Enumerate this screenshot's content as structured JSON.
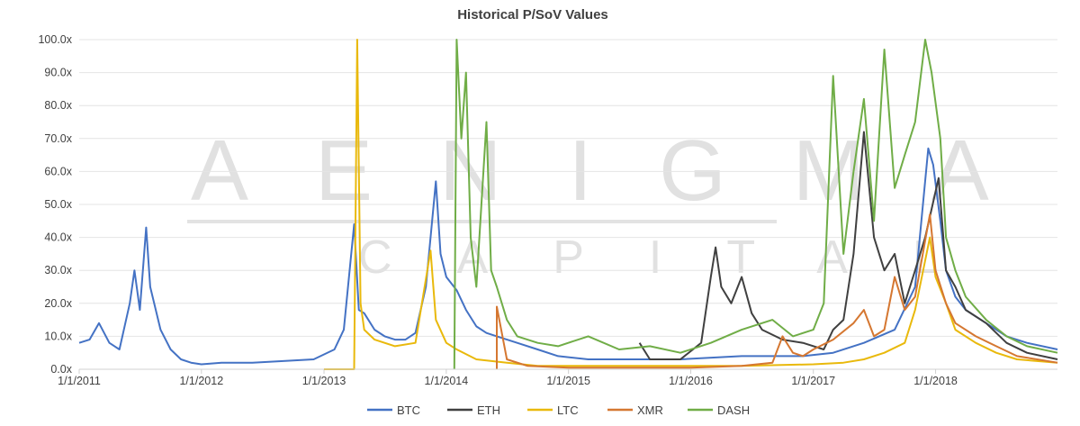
{
  "chart_data": {
    "type": "line",
    "title": "Historical P/SoV Values",
    "xlabel": "",
    "ylabel": "",
    "x_ticks": [
      "1/1/2011",
      "1/1/2012",
      "1/1/2013",
      "1/1/2014",
      "1/1/2015",
      "1/1/2016",
      "1/1/2017",
      "1/1/2018"
    ],
    "x_range": [
      "1/1/2011",
      "12/31/2018"
    ],
    "ylim": [
      0,
      100
    ],
    "y_ticks": [
      "0.0x",
      "10.0x",
      "20.0x",
      "30.0x",
      "40.0x",
      "50.0x",
      "60.0x",
      "70.0x",
      "80.0x",
      "90.0x",
      "100.0x"
    ],
    "grid": true,
    "legend_position": "bottom",
    "watermark": {
      "line1": "AENIGMA",
      "line2": "CAPITAL"
    },
    "series": [
      {
        "name": "BTC",
        "color": "#4472c4",
        "points": [
          [
            "1/1/2011",
            8
          ],
          [
            "2/1/2011",
            9
          ],
          [
            "3/1/2011",
            14
          ],
          [
            "4/1/2011",
            8
          ],
          [
            "5/1/2011",
            6
          ],
          [
            "6/1/2011",
            20
          ],
          [
            "6/15/2011",
            30
          ],
          [
            "7/1/2011",
            18
          ],
          [
            "7/20/2011",
            43
          ],
          [
            "8/1/2011",
            25
          ],
          [
            "9/1/2011",
            12
          ],
          [
            "10/1/2011",
            6
          ],
          [
            "11/1/2011",
            3
          ],
          [
            "12/1/2011",
            2
          ],
          [
            "1/1/2012",
            1.5
          ],
          [
            "3/1/2012",
            2
          ],
          [
            "6/1/2012",
            2
          ],
          [
            "9/1/2012",
            2.5
          ],
          [
            "12/1/2012",
            3
          ],
          [
            "2/1/2013",
            6
          ],
          [
            "3/1/2013",
            12
          ],
          [
            "4/1/2013",
            44
          ],
          [
            "4/15/2013",
            18
          ],
          [
            "5/1/2013",
            17
          ],
          [
            "6/1/2013",
            12
          ],
          [
            "7/1/2013",
            10
          ],
          [
            "8/1/2013",
            9
          ],
          [
            "9/1/2013",
            9
          ],
          [
            "10/1/2013",
            11
          ],
          [
            "11/1/2013",
            25
          ],
          [
            "12/1/2013",
            57
          ],
          [
            "12/15/2013",
            35
          ],
          [
            "1/1/2014",
            28
          ],
          [
            "2/1/2014",
            24
          ],
          [
            "3/1/2014",
            18
          ],
          [
            "4/1/2014",
            13
          ],
          [
            "5/1/2014",
            11
          ],
          [
            "6/1/2014",
            10
          ],
          [
            "8/1/2014",
            8
          ],
          [
            "10/1/2014",
            6
          ],
          [
            "12/1/2014",
            4
          ],
          [
            "3/1/2015",
            3
          ],
          [
            "6/1/2015",
            3
          ],
          [
            "9/1/2015",
            3
          ],
          [
            "12/1/2015",
            3
          ],
          [
            "6/1/2016",
            4
          ],
          [
            "12/1/2016",
            4
          ],
          [
            "3/1/2017",
            5
          ],
          [
            "6/1/2017",
            8
          ],
          [
            "9/1/2017",
            12
          ],
          [
            "11/1/2017",
            25
          ],
          [
            "12/10/2017",
            67
          ],
          [
            "12/25/2017",
            62
          ],
          [
            "1/15/2018",
            45
          ],
          [
            "2/1/2018",
            30
          ],
          [
            "3/1/2018",
            22
          ],
          [
            "4/1/2018",
            18
          ],
          [
            "6/1/2018",
            14
          ],
          [
            "8/1/2018",
            10
          ],
          [
            "10/1/2018",
            8
          ],
          [
            "12/31/2018",
            6
          ]
        ]
      },
      {
        "name": "ETH",
        "color": "#404040",
        "points": [
          [
            "8/1/2015",
            8
          ],
          [
            "9/1/2015",
            3
          ],
          [
            "12/1/2015",
            3
          ],
          [
            "2/1/2016",
            8
          ],
          [
            "3/1/2016",
            28
          ],
          [
            "3/15/2016",
            37
          ],
          [
            "4/1/2016",
            25
          ],
          [
            "5/1/2016",
            20
          ],
          [
            "6/1/2016",
            28
          ],
          [
            "7/1/2016",
            17
          ],
          [
            "8/1/2016",
            12
          ],
          [
            "10/1/2016",
            9
          ],
          [
            "12/1/2016",
            8
          ],
          [
            "2/1/2017",
            6
          ],
          [
            "3/1/2017",
            12
          ],
          [
            "4/1/2017",
            15
          ],
          [
            "5/1/2017",
            35
          ],
          [
            "6/1/2017",
            72
          ],
          [
            "7/1/2017",
            40
          ],
          [
            "8/1/2017",
            30
          ],
          [
            "9/1/2017",
            35
          ],
          [
            "10/1/2017",
            20
          ],
          [
            "11/1/2017",
            30
          ],
          [
            "12/1/2017",
            40
          ],
          [
            "1/10/2018",
            58
          ],
          [
            "2/1/2018",
            30
          ],
          [
            "3/1/2018",
            25
          ],
          [
            "4/1/2018",
            18
          ],
          [
            "6/1/2018",
            14
          ],
          [
            "8/1/2018",
            8
          ],
          [
            "10/1/2018",
            5
          ],
          [
            "12/31/2018",
            3
          ]
        ]
      },
      {
        "name": "LTC",
        "color": "#e9b90c",
        "points": [
          [
            "1/1/2013",
            0
          ],
          [
            "4/1/2013",
            0
          ],
          [
            "4/10/2013",
            100
          ],
          [
            "4/20/2013",
            20
          ],
          [
            "5/1/2013",
            12
          ],
          [
            "6/1/2013",
            9
          ],
          [
            "8/1/2013",
            7
          ],
          [
            "10/1/2013",
            8
          ],
          [
            "11/15/2013",
            36
          ],
          [
            "12/1/2013",
            15
          ],
          [
            "1/1/2014",
            8
          ],
          [
            "2/1/2014",
            6
          ],
          [
            "4/1/2014",
            3
          ],
          [
            "7/1/2014",
            2
          ],
          [
            "10/1/2014",
            1
          ],
          [
            "12/1/2014",
            1
          ],
          [
            "6/1/2015",
            1
          ],
          [
            "1/1/2016",
            1
          ],
          [
            "6/1/2016",
            1
          ],
          [
            "1/1/2017",
            1.5
          ],
          [
            "4/1/2017",
            2
          ],
          [
            "6/1/2017",
            3
          ],
          [
            "8/1/2017",
            5
          ],
          [
            "10/1/2017",
            8
          ],
          [
            "11/1/2017",
            18
          ],
          [
            "12/15/2017",
            40
          ],
          [
            "1/1/2018",
            28
          ],
          [
            "2/1/2018",
            20
          ],
          [
            "3/1/2018",
            12
          ],
          [
            "5/1/2018",
            8
          ],
          [
            "7/1/2018",
            5
          ],
          [
            "9/1/2018",
            3
          ],
          [
            "12/31/2018",
            2
          ]
        ]
      },
      {
        "name": "XMR",
        "color": "#d57731",
        "points": [
          [
            "6/1/2014",
            0
          ],
          [
            "6/1/2014",
            19
          ],
          [
            "7/1/2014",
            3
          ],
          [
            "9/1/2014",
            1
          ],
          [
            "1/1/2015",
            0.5
          ],
          [
            "6/1/2015",
            0.5
          ],
          [
            "1/1/2016",
            0.5
          ],
          [
            "6/1/2016",
            1
          ],
          [
            "9/1/2016",
            2
          ],
          [
            "10/1/2016",
            10
          ],
          [
            "11/1/2016",
            5
          ],
          [
            "12/1/2016",
            4
          ],
          [
            "1/1/2017",
            6
          ],
          [
            "3/1/2017",
            9
          ],
          [
            "5/1/2017",
            14
          ],
          [
            "6/1/2017",
            18
          ],
          [
            "7/1/2017",
            10
          ],
          [
            "8/1/2017",
            12
          ],
          [
            "9/1/2017",
            28
          ],
          [
            "10/1/2017",
            18
          ],
          [
            "11/1/2017",
            22
          ],
          [
            "12/15/2017",
            47
          ],
          [
            "1/1/2018",
            30
          ],
          [
            "2/1/2018",
            20
          ],
          [
            "3/1/2018",
            14
          ],
          [
            "5/1/2018",
            10
          ],
          [
            "7/1/2018",
            7
          ],
          [
            "9/1/2018",
            4
          ],
          [
            "12/31/2018",
            2
          ]
        ]
      },
      {
        "name": "DASH",
        "color": "#70ad47",
        "points": [
          [
            "1/25/2014",
            0
          ],
          [
            "2/1/2014",
            100
          ],
          [
            "2/15/2014",
            70
          ],
          [
            "3/1/2014",
            90
          ],
          [
            "3/15/2014",
            40
          ],
          [
            "4/1/2014",
            25
          ],
          [
            "5/1/2014",
            75
          ],
          [
            "5/15/2014",
            30
          ],
          [
            "6/1/2014",
            25
          ],
          [
            "7/1/2014",
            15
          ],
          [
            "8/1/2014",
            10
          ],
          [
            "10/1/2014",
            8
          ],
          [
            "12/1/2014",
            7
          ],
          [
            "3/1/2015",
            10
          ],
          [
            "6/1/2015",
            6
          ],
          [
            "9/1/2015",
            7
          ],
          [
            "12/1/2015",
            5
          ],
          [
            "3/1/2016",
            8
          ],
          [
            "6/1/2016",
            12
          ],
          [
            "9/1/2016",
            15
          ],
          [
            "11/1/2016",
            10
          ],
          [
            "1/1/2017",
            12
          ],
          [
            "2/1/2017",
            20
          ],
          [
            "3/1/2017",
            89
          ],
          [
            "4/1/2017",
            35
          ],
          [
            "5/1/2017",
            60
          ],
          [
            "6/1/2017",
            82
          ],
          [
            "7/1/2017",
            45
          ],
          [
            "8/1/2017",
            97
          ],
          [
            "9/1/2017",
            55
          ],
          [
            "10/1/2017",
            65
          ],
          [
            "11/1/2017",
            75
          ],
          [
            "12/1/2017",
            100
          ],
          [
            "12/20/2017",
            90
          ],
          [
            "1/15/2018",
            70
          ],
          [
            "2/1/2018",
            40
          ],
          [
            "3/1/2018",
            30
          ],
          [
            "4/1/2018",
            22
          ],
          [
            "6/1/2018",
            15
          ],
          [
            "8/1/2018",
            10
          ],
          [
            "10/1/2018",
            7
          ],
          [
            "12/31/2018",
            5
          ]
        ]
      }
    ]
  }
}
